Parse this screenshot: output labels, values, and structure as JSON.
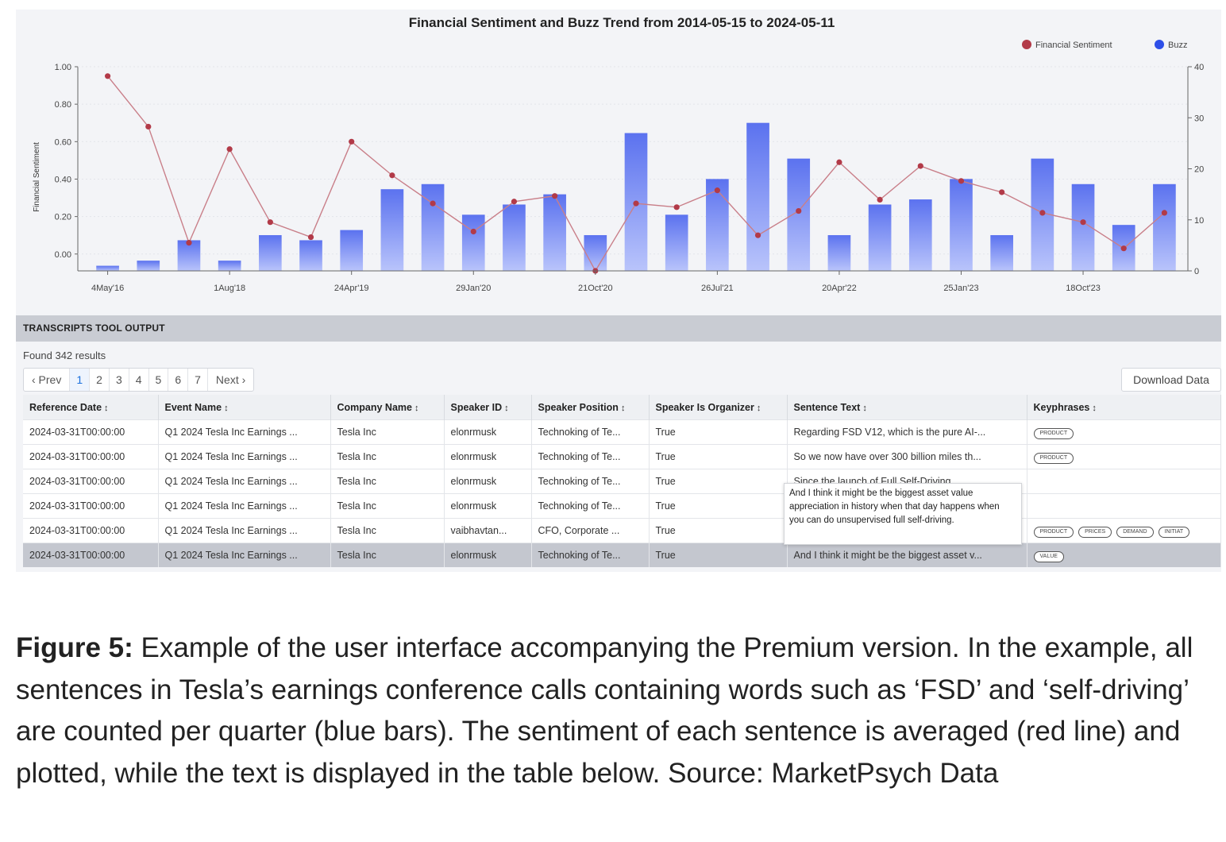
{
  "chart_data": {
    "type": "bar+line",
    "title": "Financial Sentiment and Buzz Trend from 2014-05-15 to 2024-05-11",
    "legend": [
      {
        "name": "Financial Sentiment",
        "color": "#b23a48"
      },
      {
        "name": "Buzz",
        "color": "#2e4fe8"
      }
    ],
    "legend_position": "top-right",
    "ylabel_left": "Financial Sentiment",
    "ylim_left": [
      -0.09,
      1.0
    ],
    "yticks_left": [
      "1.00",
      "0.80",
      "0.60",
      "0.40",
      "0.20",
      "0.00"
    ],
    "ylim_right": [
      0,
      40
    ],
    "yticks_right": [
      "40",
      "30",
      "20",
      "10",
      "0"
    ],
    "x_tick_labels": [
      "4May'16",
      "1Aug'18",
      "24Apr'19",
      "29Jan'20",
      "21Oct'20",
      "26Jul'21",
      "20Apr'22",
      "25Jan'23",
      "18Oct'23"
    ],
    "x_tick_index": [
      0,
      3,
      6,
      9,
      12,
      15,
      18,
      21,
      24
    ],
    "points": 27,
    "series": [
      {
        "name": "Buzz",
        "kind": "bar",
        "axis": "right",
        "values": [
          1,
          2,
          6,
          2,
          7,
          6,
          8,
          16,
          17,
          11,
          13,
          15,
          7,
          27,
          11,
          18,
          29,
          22,
          7,
          13,
          14,
          18,
          7,
          22,
          17,
          9,
          17
        ]
      },
      {
        "name": "Financial Sentiment",
        "kind": "line",
        "axis": "left",
        "values": [
          0.95,
          0.68,
          0.06,
          0.56,
          0.17,
          0.09,
          0.6,
          0.42,
          0.27,
          0.12,
          0.28,
          0.31,
          -0.09,
          0.27,
          0.25,
          0.34,
          0.1,
          0.23,
          0.49,
          0.29,
          0.47,
          0.39,
          0.33,
          0.22,
          0.17,
          0.03,
          0.22
        ]
      }
    ]
  },
  "section": {
    "title": "TRANSCRIPTS TOOL OUTPUT",
    "found": "Found 342 results"
  },
  "pager": {
    "prev": "‹ Prev",
    "pages": [
      "1",
      "2",
      "3",
      "4",
      "5",
      "6",
      "7"
    ],
    "next": "Next ›",
    "active": "1"
  },
  "download_label": "Download Data",
  "table": {
    "sort_icon": "↕",
    "headers": [
      "Reference Date",
      "Event Name",
      "Company Name",
      "Speaker ID",
      "Speaker Position",
      "Speaker Is Organizer",
      "Sentence Text",
      "Keyphrases"
    ],
    "rows": [
      {
        "date": "2024-03-31T00:00:00",
        "event": "Q1 2024 Tesla Inc Earnings ...",
        "company": "Tesla Inc",
        "speaker": "elonrmusk",
        "position": "Technoking of Te...",
        "organizer": "True",
        "sentence": "Regarding FSD V12, which is the pure AI-...",
        "keyphrases": [
          "PRODUCT"
        ]
      },
      {
        "date": "2024-03-31T00:00:00",
        "event": "Q1 2024 Tesla Inc Earnings ...",
        "company": "Tesla Inc",
        "speaker": "elonrmusk",
        "position": "Technoking of Te...",
        "organizer": "True",
        "sentence": "So we now have over 300 billion miles th...",
        "keyphrases": [
          "PRODUCT"
        ]
      },
      {
        "date": "2024-03-31T00:00:00",
        "event": "Q1 2024 Tesla Inc Earnings ...",
        "company": "Tesla Inc",
        "speaker": "elonrmusk",
        "position": "Technoking of Te...",
        "organizer": "True",
        "sentence": "Since the launch of Full Self-Driving ...",
        "keyphrases": []
      },
      {
        "date": "2024-03-31T00:00:00",
        "event": "Q1 2024 Tesla Inc Earnings ...",
        "company": "Tesla Inc",
        "speaker": "elonrmusk",
        "position": "Technoking of Te...",
        "organizer": "True",
        "sentence": "",
        "keyphrases": []
      },
      {
        "date": "2024-03-31T00:00:00",
        "event": "Q1 2024 Tesla Inc Earnings ...",
        "company": "Tesla Inc",
        "speaker": "vaibhavtan...",
        "position": "CFO, Corporate ...",
        "organizer": "True",
        "sentence": "",
        "keyphrases": [
          "PRODUCT",
          "PRICES",
          "DEMAND",
          "INITIAT"
        ]
      },
      {
        "date": "2024-03-31T00:00:00",
        "event": "Q1 2024 Tesla Inc Earnings ...",
        "company": "Tesla Inc",
        "speaker": "elonrmusk",
        "position": "Technoking of Te...",
        "organizer": "True",
        "sentence": "And I think it might be the biggest asset v...",
        "keyphrases": [
          "VALUE"
        ],
        "selected": true
      }
    ]
  },
  "tooltip": {
    "text": "And I think it might be the biggest asset value appreciation in history when that day happens when you can do unsupervised full self-driving."
  },
  "caption": {
    "label": "Figure 5:",
    "text": " Example of the user interface accompanying the Premium version. In the example, all sentences in Tesla’s earnings conference calls containing words such as ‘FSD’ and ‘self-driving’ are counted per quarter (blue bars). The sentiment of each sentence is averaged (red line) and plotted, while the text is displayed in the table below. Source: MarketPsych Data"
  }
}
